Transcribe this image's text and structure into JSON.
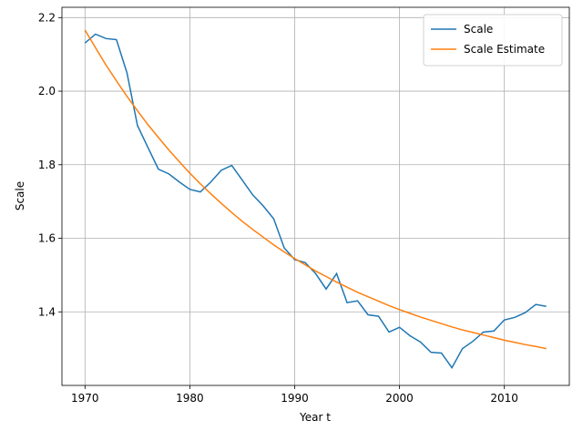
{
  "chart_data": {
    "type": "line",
    "xlabel": "Year t",
    "ylabel": "Scale",
    "x": [
      1970,
      1971,
      1972,
      1973,
      1974,
      1975,
      1976,
      1977,
      1978,
      1979,
      1980,
      1981,
      1982,
      1983,
      1984,
      1985,
      1986,
      1987,
      1988,
      1989,
      1990,
      1991,
      1992,
      1993,
      1994,
      1995,
      1996,
      1997,
      1998,
      1999,
      2000,
      2001,
      2002,
      2003,
      2004,
      2005,
      2006,
      2007,
      2008,
      2009,
      2010,
      2011,
      2012,
      2013,
      2014
    ],
    "series": [
      {
        "name": "Scale",
        "color": "#1f77b4",
        "values": [
          2.131,
          2.155,
          2.143,
          2.14,
          2.05,
          1.907,
          1.847,
          1.788,
          1.775,
          1.753,
          1.733,
          1.726,
          1.753,
          1.785,
          1.798,
          1.758,
          1.718,
          1.688,
          1.653,
          1.574,
          1.542,
          1.534,
          1.504,
          1.462,
          1.504,
          1.425,
          1.43,
          1.392,
          1.388,
          1.345,
          1.358,
          1.335,
          1.318,
          1.29,
          1.288,
          1.248,
          1.3,
          1.32,
          1.345,
          1.348,
          1.378,
          1.385,
          1.398,
          1.42,
          1.415
        ]
      },
      {
        "name": "Scale Estimate",
        "color": "#ff7f0e",
        "values": [
          2.166,
          2.118,
          2.071,
          2.028,
          1.986,
          1.947,
          1.909,
          1.874,
          1.84,
          1.808,
          1.777,
          1.748,
          1.721,
          1.695,
          1.67,
          1.646,
          1.624,
          1.603,
          1.582,
          1.563,
          1.545,
          1.528,
          1.511,
          1.496,
          1.481,
          1.467,
          1.453,
          1.441,
          1.429,
          1.417,
          1.406,
          1.396,
          1.386,
          1.377,
          1.368,
          1.359,
          1.351,
          1.344,
          1.337,
          1.33,
          1.323,
          1.317,
          1.311,
          1.306,
          1.3
        ]
      }
    ],
    "xlim": [
      1967.8,
      2016.2
    ],
    "xticks": [
      1970,
      1980,
      1990,
      2000,
      2010
    ],
    "ylim": [
      1.2,
      2.228
    ],
    "yticks": [
      1.4,
      1.6,
      1.8,
      {
        "value": 2.0,
        "label": "2.0"
      },
      2.2
    ],
    "grid": true,
    "legend": "upper right"
  }
}
